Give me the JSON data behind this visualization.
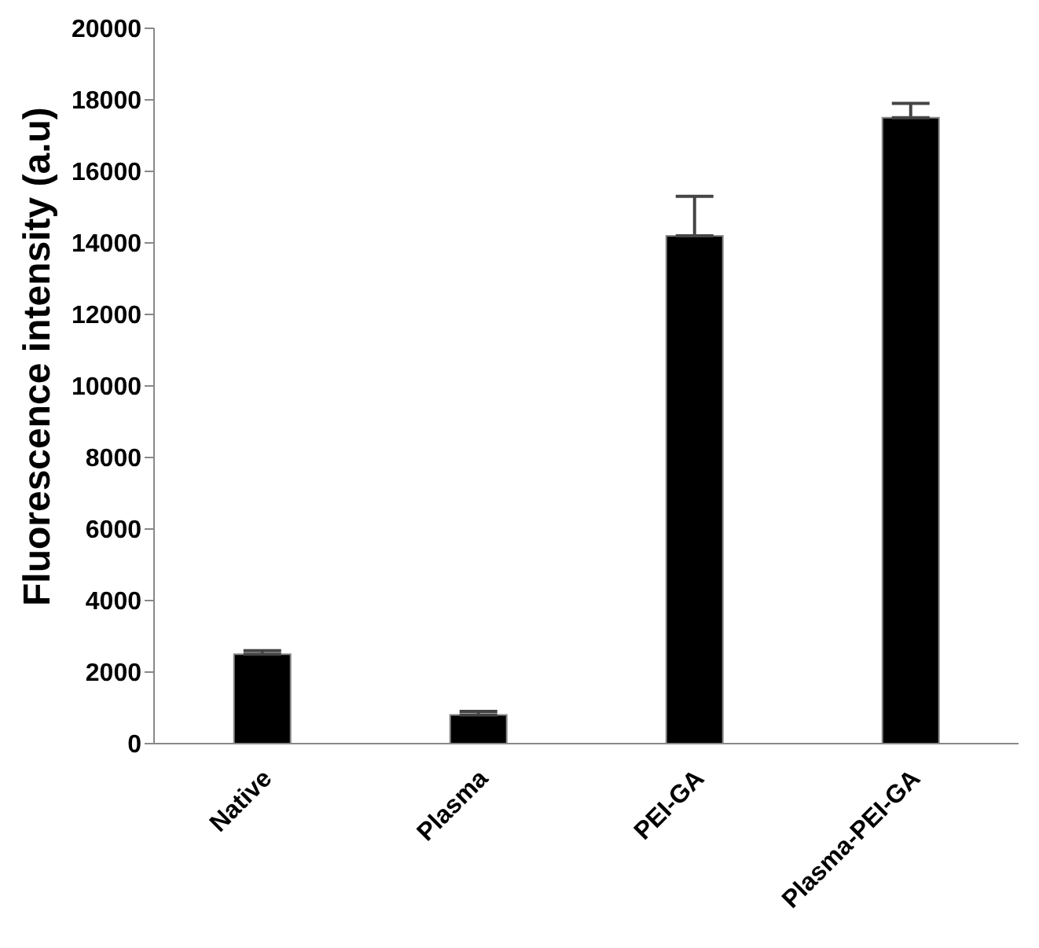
{
  "chart_data": {
    "type": "bar",
    "ylabel": "Fluorescence intensity (a.u)",
    "categories": [
      "Native",
      "Plasma",
      "PEI-GA",
      "Plasma-PEI-GA"
    ],
    "values": [
      2500,
      800,
      14200,
      17500
    ],
    "errors": [
      [
        2500,
        2600
      ],
      [
        800,
        900
      ],
      [
        14200,
        15300
      ],
      [
        17500,
        17900
      ]
    ],
    "color": "#000000",
    "ylim": [
      0,
      20000
    ],
    "yticks": [
      0,
      2000,
      4000,
      6000,
      8000,
      10000,
      12000,
      14000,
      16000,
      18000,
      20000
    ],
    "grid": false,
    "legend": false
  }
}
